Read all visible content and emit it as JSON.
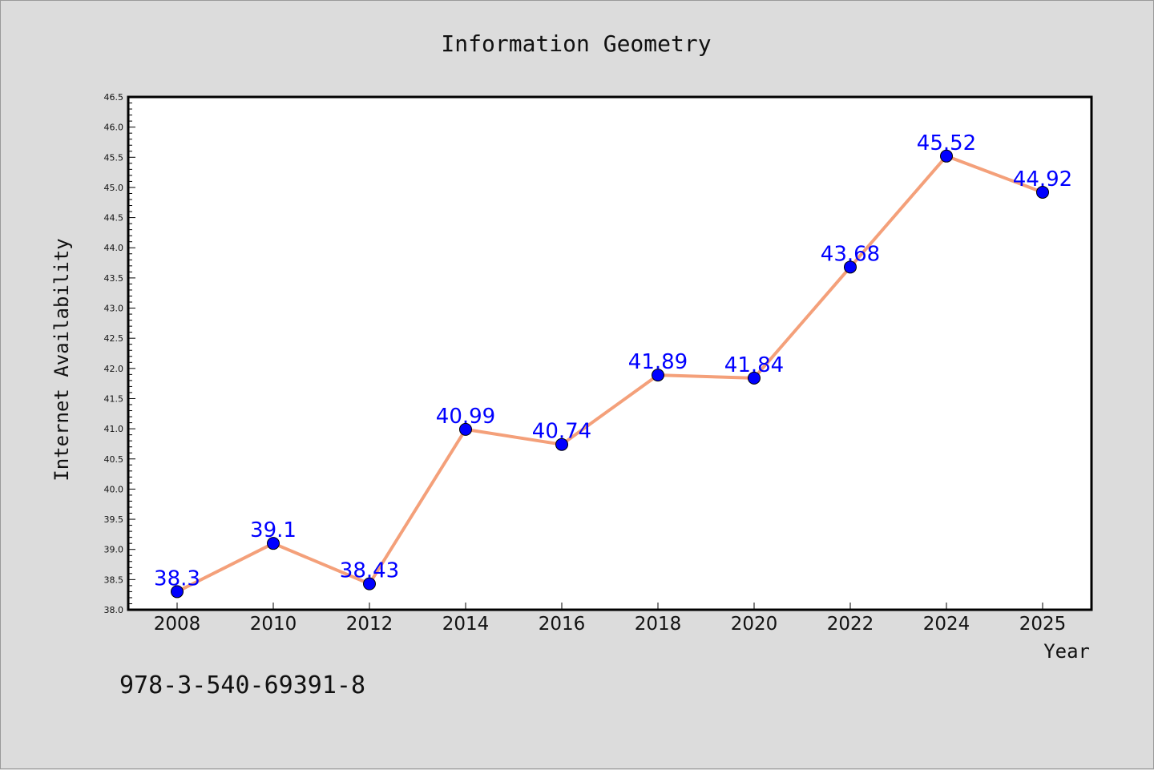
{
  "chart_data": {
    "type": "line",
    "title": "Information Geometry",
    "xlabel": "Year",
    "ylabel": "Internet Availability",
    "categories": [
      "2008",
      "2010",
      "2012",
      "2014",
      "2016",
      "2018",
      "2020",
      "2022",
      "2024",
      "2025"
    ],
    "series": [
      {
        "values": [
          38.3,
          39.1,
          38.43,
          40.99,
          40.74,
          41.89,
          41.84,
          43.68,
          45.52,
          44.92
        ],
        "data_labels": [
          "38.3",
          "39.1",
          "38.43",
          "40.99",
          "40.74",
          "41.89",
          "41.84",
          "43.68",
          "45.52",
          "44.92"
        ],
        "line_color": "#f4a07a",
        "marker_color": "#0000ff"
      }
    ],
    "ylim": [
      38.0,
      46.5
    ],
    "yticks": [
      "38.0",
      "38.5",
      "39.0",
      "39.5",
      "40.0",
      "40.5",
      "41.0",
      "41.5",
      "42.0",
      "42.5",
      "43.0",
      "43.5",
      "44.0",
      "44.5",
      "45.0",
      "45.5",
      "46.0",
      "46.5"
    ],
    "grid": false,
    "legend": "none"
  },
  "annotation": "978-3-540-69391-8",
  "colors": {
    "background": "#dcdcdc",
    "plot_area": "#ffffff",
    "line": "#f4a07a",
    "marker": "#0000ff",
    "data_label": "#0000ff"
  }
}
